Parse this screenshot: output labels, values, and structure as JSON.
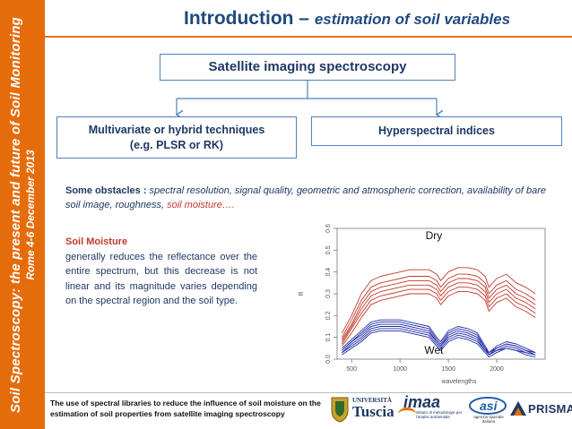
{
  "sidebar": {
    "line1": "Soil Spectroscopy: the present and future of Soil Monitoring",
    "line2": "Rome 4-6 December 2013"
  },
  "title": {
    "main": "Introduction – ",
    "sub": "estimation of soil variables"
  },
  "boxes": {
    "satellite": "Satellite imaging spectroscopy",
    "multivariate_line1": "Multivariate or hybrid techniques",
    "multivariate_line2": "(e.g. PLSR or RK)",
    "hyperspectral": "Hyperspectral indices"
  },
  "obstacles": {
    "lead": "Some obstacles : ",
    "text": "spectral resolution, signal quality, geometric and atmospheric correction, availability of bare soil image, roughness, ",
    "highlight": "soil moisture…."
  },
  "soil_moisture": {
    "heading": "Soil Moisture",
    "body": "generally reduces the reflectance over the entire spectrum, but this decrease is not linear and its magnitude varies depending on the spectral region and the soil type."
  },
  "chart_data": {
    "type": "line",
    "xlabel": "wavelengths",
    "ylabel": "R",
    "xlim": [
      350,
      2500
    ],
    "ylim": [
      0,
      0.6
    ],
    "x_ticks": [
      500,
      1000,
      1500,
      2000
    ],
    "y_ticks": [
      0.0,
      0.1,
      0.2,
      0.3,
      0.4,
      0.5,
      0.6
    ],
    "annotations": [
      "Dry",
      "Wet"
    ],
    "colors": {
      "dry": "#c0392b",
      "wet": "#1f2aa6"
    },
    "x": [
      400,
      500,
      600,
      700,
      800,
      900,
      1000,
      1100,
      1200,
      1300,
      1380,
      1420,
      1500,
      1600,
      1700,
      1800,
      1880,
      1920,
      2000,
      2100,
      2200,
      2300,
      2400
    ],
    "series": [
      {
        "group": "dry",
        "values": [
          0.12,
          0.2,
          0.3,
          0.36,
          0.38,
          0.39,
          0.4,
          0.41,
          0.41,
          0.41,
          0.39,
          0.36,
          0.4,
          0.42,
          0.42,
          0.41,
          0.38,
          0.33,
          0.37,
          0.39,
          0.35,
          0.33,
          0.3
        ]
      },
      {
        "group": "dry",
        "values": [
          0.1,
          0.18,
          0.27,
          0.33,
          0.35,
          0.36,
          0.37,
          0.38,
          0.38,
          0.38,
          0.36,
          0.33,
          0.37,
          0.39,
          0.39,
          0.38,
          0.35,
          0.3,
          0.34,
          0.36,
          0.32,
          0.3,
          0.27
        ]
      },
      {
        "group": "dry",
        "values": [
          0.09,
          0.16,
          0.25,
          0.31,
          0.33,
          0.34,
          0.35,
          0.36,
          0.36,
          0.36,
          0.34,
          0.31,
          0.35,
          0.37,
          0.37,
          0.36,
          0.33,
          0.28,
          0.32,
          0.34,
          0.3,
          0.28,
          0.25
        ]
      },
      {
        "group": "dry",
        "values": [
          0.08,
          0.15,
          0.23,
          0.29,
          0.31,
          0.32,
          0.33,
          0.34,
          0.34,
          0.34,
          0.32,
          0.29,
          0.33,
          0.35,
          0.35,
          0.34,
          0.31,
          0.26,
          0.3,
          0.32,
          0.28,
          0.26,
          0.23
        ]
      },
      {
        "group": "dry",
        "values": [
          0.07,
          0.14,
          0.21,
          0.27,
          0.29,
          0.3,
          0.31,
          0.32,
          0.32,
          0.32,
          0.3,
          0.27,
          0.31,
          0.33,
          0.33,
          0.32,
          0.29,
          0.24,
          0.28,
          0.3,
          0.26,
          0.24,
          0.21
        ]
      },
      {
        "group": "dry",
        "values": [
          0.06,
          0.12,
          0.19,
          0.25,
          0.27,
          0.28,
          0.29,
          0.3,
          0.3,
          0.3,
          0.28,
          0.25,
          0.29,
          0.31,
          0.31,
          0.3,
          0.27,
          0.22,
          0.26,
          0.28,
          0.24,
          0.22,
          0.19
        ]
      },
      {
        "group": "wet",
        "values": [
          0.05,
          0.09,
          0.13,
          0.17,
          0.18,
          0.18,
          0.18,
          0.17,
          0.16,
          0.15,
          0.1,
          0.08,
          0.13,
          0.15,
          0.14,
          0.12,
          0.06,
          0.03,
          0.06,
          0.08,
          0.07,
          0.05,
          0.03
        ]
      },
      {
        "group": "wet",
        "values": [
          0.04,
          0.08,
          0.12,
          0.16,
          0.17,
          0.17,
          0.17,
          0.16,
          0.15,
          0.14,
          0.09,
          0.07,
          0.12,
          0.14,
          0.13,
          0.11,
          0.05,
          0.03,
          0.05,
          0.07,
          0.06,
          0.04,
          0.03
        ]
      },
      {
        "group": "wet",
        "values": [
          0.04,
          0.08,
          0.11,
          0.15,
          0.16,
          0.16,
          0.16,
          0.15,
          0.14,
          0.13,
          0.08,
          0.06,
          0.11,
          0.13,
          0.12,
          0.1,
          0.05,
          0.02,
          0.05,
          0.07,
          0.06,
          0.04,
          0.02
        ]
      },
      {
        "group": "wet",
        "values": [
          0.03,
          0.07,
          0.1,
          0.14,
          0.15,
          0.15,
          0.15,
          0.14,
          0.13,
          0.12,
          0.08,
          0.06,
          0.1,
          0.12,
          0.11,
          0.09,
          0.04,
          0.02,
          0.04,
          0.06,
          0.05,
          0.03,
          0.02
        ]
      },
      {
        "group": "wet",
        "values": [
          0.03,
          0.06,
          0.09,
          0.13,
          0.14,
          0.14,
          0.14,
          0.13,
          0.12,
          0.11,
          0.07,
          0.05,
          0.09,
          0.11,
          0.1,
          0.08,
          0.04,
          0.02,
          0.04,
          0.05,
          0.04,
          0.03,
          0.02
        ]
      },
      {
        "group": "wet",
        "values": [
          0.02,
          0.05,
          0.08,
          0.12,
          0.13,
          0.13,
          0.13,
          0.12,
          0.11,
          0.1,
          0.06,
          0.04,
          0.08,
          0.1,
          0.09,
          0.07,
          0.03,
          0.01,
          0.03,
          0.05,
          0.04,
          0.02,
          0.01
        ]
      }
    ]
  },
  "footer": {
    "text": "The use of spectral libraries to reduce the influence of soil moisture on the estimation of soil properties from satellite imaging spectroscopy"
  },
  "logos": {
    "tuscia_small": "UNIVERSITÀ",
    "tuscia_big": "Tuscia",
    "imaa": "imaa",
    "imaa_sub": "istituto di metodologie per l'analisi ambientale",
    "asi_sub": "agenzia spaziale italiana",
    "prisma": "PRISMA"
  }
}
